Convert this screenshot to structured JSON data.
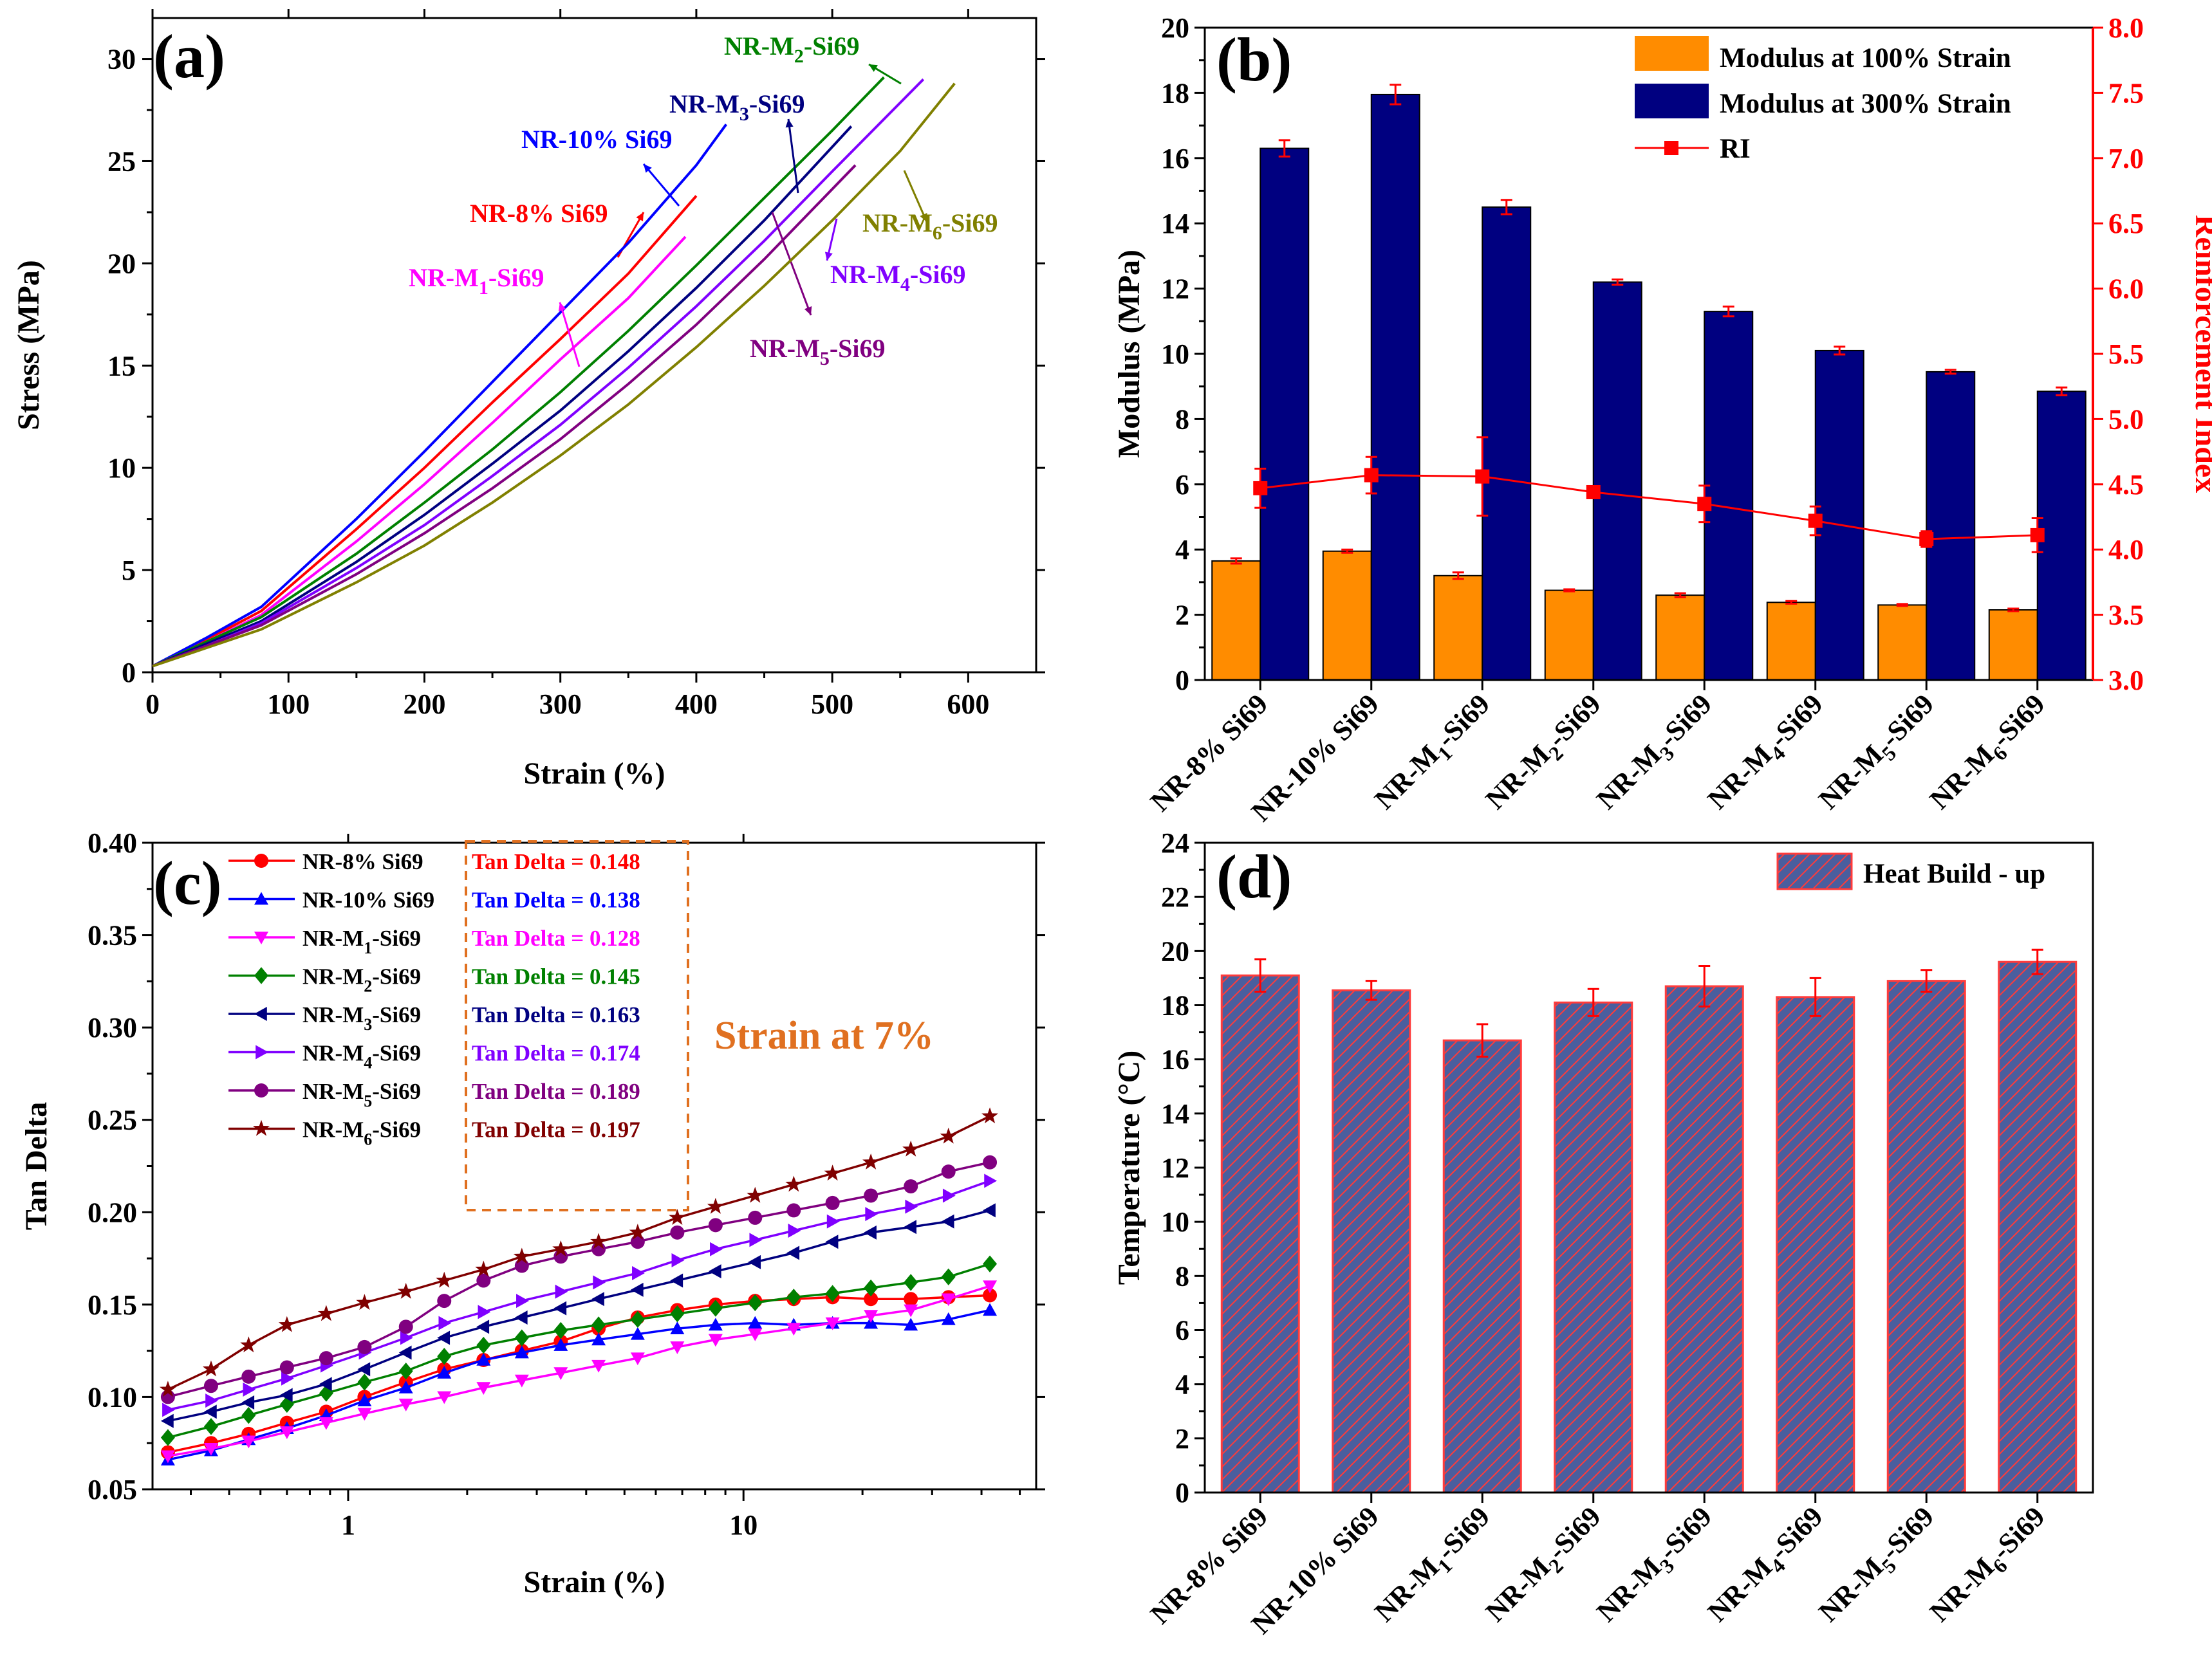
{
  "colors": {
    "navy": "#000080",
    "orange": "#ff8c00",
    "red": "#ff0000",
    "blue": "#0000ff",
    "magenta": "#ff00ff",
    "green": "#008000",
    "darknavy": "#000080",
    "violet": "#8000ff",
    "purple": "#800080",
    "olive": "#808000",
    "darkred": "#800000",
    "hatch_fill": "#4a5e9e",
    "hatch_line": "#ff3b3b",
    "callout": "#e07020"
  },
  "chart_data": [
    {
      "id": "a",
      "panel_label": "(a)",
      "type": "line",
      "xlabel": "Strain (%)",
      "ylabel": "Stress (MPa)",
      "xlim": [
        0,
        650
      ],
      "ylim": [
        0,
        32
      ],
      "xticks": [
        "0",
        "100",
        "200",
        "300",
        "400",
        "500",
        "600"
      ],
      "yticks": [
        "0",
        "5",
        "10",
        "15",
        "20",
        "25",
        "30"
      ],
      "series": [
        {
          "name": "NR-8% Si69",
          "label_parts": [
            "NR-8% Si69"
          ],
          "color": "#ff0000",
          "points": [
            [
              0,
              0.3
            ],
            [
              40,
              1.6
            ],
            [
              80,
              3.0
            ],
            [
              150,
              7.0
            ],
            [
              200,
              10.0
            ],
            [
              250,
              13.2
            ],
            [
              300,
              16.3
            ],
            [
              350,
              19.5
            ],
            [
              400,
              23.3
            ]
          ]
        },
        {
          "name": "NR-10% Si69",
          "label_parts": [
            "NR-10% Si69"
          ],
          "color": "#0000ff",
          "points": [
            [
              0,
              0.3
            ],
            [
              40,
              1.7
            ],
            [
              80,
              3.2
            ],
            [
              150,
              7.5
            ],
            [
              200,
              10.8
            ],
            [
              250,
              14.2
            ],
            [
              300,
              17.6
            ],
            [
              350,
              21.0
            ],
            [
              400,
              24.8
            ],
            [
              422,
              26.8
            ]
          ]
        },
        {
          "name": "NR-M1-Si69",
          "label_parts": [
            "NR-M",
            "1",
            "-Si69"
          ],
          "color": "#ff00ff",
          "points": [
            [
              0,
              0.3
            ],
            [
              40,
              1.5
            ],
            [
              80,
              2.8
            ],
            [
              150,
              6.4
            ],
            [
              200,
              9.2
            ],
            [
              250,
              12.2
            ],
            [
              300,
              15.3
            ],
            [
              350,
              18.3
            ],
            [
              392,
              21.3
            ]
          ]
        },
        {
          "name": "NR-M2-Si69",
          "label_parts": [
            "NR-M",
            "2",
            "-Si69"
          ],
          "color": "#008000",
          "points": [
            [
              0,
              0.3
            ],
            [
              40,
              1.5
            ],
            [
              80,
              2.7
            ],
            [
              150,
              5.8
            ],
            [
              200,
              8.3
            ],
            [
              250,
              10.9
            ],
            [
              300,
              13.7
            ],
            [
              350,
              16.7
            ],
            [
              400,
              19.9
            ],
            [
              450,
              23.2
            ],
            [
              500,
              26.5
            ],
            [
              538,
              29.1
            ]
          ]
        },
        {
          "name": "NR-M3-Si69",
          "label_parts": [
            "NR-M",
            "3",
            "-Si69"
          ],
          "color": "#000080",
          "points": [
            [
              0,
              0.3
            ],
            [
              40,
              1.4
            ],
            [
              80,
              2.5
            ],
            [
              150,
              5.4
            ],
            [
              200,
              7.7
            ],
            [
              250,
              10.2
            ],
            [
              300,
              12.8
            ],
            [
              350,
              15.7
            ],
            [
              400,
              18.8
            ],
            [
              450,
              22.1
            ],
            [
              514,
              26.7
            ]
          ]
        },
        {
          "name": "NR-M4-Si69",
          "label_parts": [
            "NR-M",
            "4",
            "-Si69"
          ],
          "color": "#8000ff",
          "points": [
            [
              0,
              0.3
            ],
            [
              40,
              1.3
            ],
            [
              80,
              2.4
            ],
            [
              150,
              5.1
            ],
            [
              200,
              7.2
            ],
            [
              250,
              9.6
            ],
            [
              300,
              12.1
            ],
            [
              350,
              14.9
            ],
            [
              400,
              17.9
            ],
            [
              450,
              21.1
            ],
            [
              500,
              24.5
            ],
            [
              567,
              29.0
            ]
          ]
        },
        {
          "name": "NR-M5-Si69",
          "label_parts": [
            "NR-M",
            "5",
            "-Si69"
          ],
          "color": "#800080",
          "points": [
            [
              0,
              0.3
            ],
            [
              40,
              1.3
            ],
            [
              80,
              2.3
            ],
            [
              150,
              4.8
            ],
            [
              200,
              6.8
            ],
            [
              250,
              9.0
            ],
            [
              300,
              11.4
            ],
            [
              350,
              14.1
            ],
            [
              400,
              17.0
            ],
            [
              450,
              20.2
            ],
            [
              517,
              24.8
            ]
          ]
        },
        {
          "name": "NR-M6-Si69",
          "label_parts": [
            "NR-M",
            "6",
            "-Si69"
          ],
          "color": "#808000",
          "points": [
            [
              0,
              0.3
            ],
            [
              40,
              1.2
            ],
            [
              80,
              2.1
            ],
            [
              150,
              4.4
            ],
            [
              200,
              6.2
            ],
            [
              250,
              8.3
            ],
            [
              300,
              10.6
            ],
            [
              350,
              13.1
            ],
            [
              400,
              15.9
            ],
            [
              450,
              18.9
            ],
            [
              500,
              22.1
            ],
            [
              550,
              25.5
            ],
            [
              590,
              28.8
            ]
          ]
        }
      ]
    },
    {
      "id": "b",
      "panel_label": "(b)",
      "type": "bar",
      "ylabel": "Modulus (MPa)",
      "y2label": "Reinforcement Index",
      "ylim": [
        0,
        20
      ],
      "y2lim": [
        3.0,
        8.0
      ],
      "yticks": [
        "0",
        "2",
        "4",
        "6",
        "8",
        "10",
        "12",
        "14",
        "16",
        "18",
        "20"
      ],
      "y2ticks": [
        "3.0",
        "3.5",
        "4.0",
        "4.5",
        "5.0",
        "5.5",
        "6.0",
        "6.5",
        "7.0",
        "7.5",
        "8.0"
      ],
      "categories": [
        {
          "label": "NR-8% Si69",
          "parts": [
            "NR-8% Si69"
          ]
        },
        {
          "label": "NR-10% Si69",
          "parts": [
            "NR-10% Si69"
          ]
        },
        {
          "label": "NR-M1-Si69",
          "parts": [
            "NR-M",
            "1",
            "-Si69"
          ]
        },
        {
          "label": "NR-M2-Si69",
          "parts": [
            "NR-M",
            "2",
            "-Si69"
          ]
        },
        {
          "label": "NR-M3-Si69",
          "parts": [
            "NR-M",
            "3",
            "-Si69"
          ]
        },
        {
          "label": "NR-M4-Si69",
          "parts": [
            "NR-M",
            "4",
            "-Si69"
          ]
        },
        {
          "label": "NR-M5-Si69",
          "parts": [
            "NR-M",
            "5",
            "-Si69"
          ]
        },
        {
          "label": "NR-M6-Si69",
          "parts": [
            "NR-M",
            "6",
            "-Si69"
          ]
        }
      ],
      "series": [
        {
          "name": "Modulus at 100% Strain",
          "color": "#ff8c00",
          "values": [
            3.65,
            3.95,
            3.2,
            2.75,
            2.6,
            2.38,
            2.3,
            2.15
          ],
          "errors": [
            0.08,
            0.05,
            0.1,
            0.03,
            0.06,
            0.04,
            0.03,
            0.04
          ]
        },
        {
          "name": "Modulus at 300% Strain",
          "color": "#000080",
          "values": [
            16.3,
            17.95,
            14.5,
            12.2,
            11.3,
            10.1,
            9.45,
            8.85
          ],
          "errors": [
            0.25,
            0.3,
            0.22,
            0.08,
            0.15,
            0.12,
            0.06,
            0.12
          ]
        },
        {
          "name": "RI",
          "axis": "right",
          "color": "#ff0000",
          "values": [
            4.47,
            4.57,
            4.56,
            4.44,
            4.35,
            4.22,
            4.08,
            4.11
          ],
          "errors": [
            0.15,
            0.14,
            0.3,
            0.03,
            0.14,
            0.11,
            0.06,
            0.13
          ]
        }
      ]
    },
    {
      "id": "c",
      "panel_label": "(c)",
      "type": "line",
      "xscale": "log",
      "xlabel": "Strain (%)",
      "ylabel": "Tan Delta",
      "xlim": [
        0.32,
        55
      ],
      "ylim": [
        0.05,
        0.4
      ],
      "xticks": [
        "1",
        "10"
      ],
      "yticks": [
        "0.05",
        "0.10",
        "0.15",
        "0.20",
        "0.25",
        "0.30",
        "0.35",
        "0.40"
      ],
      "x": [
        0.35,
        0.45,
        0.56,
        0.7,
        0.88,
        1.1,
        1.4,
        1.75,
        2.2,
        2.75,
        3.45,
        4.3,
        5.4,
        6.8,
        8.5,
        10.7,
        13.4,
        16.8,
        21,
        26.5,
        33,
        42
      ],
      "annotation": "Strain at 7%",
      "series": [
        {
          "name": "NR-8% Si69",
          "parts": [
            "NR-8% Si69"
          ],
          "tan_delta": "Tan Delta = 0.148",
          "color": "#ff0000",
          "marker": "circle",
          "values": [
            0.07,
            0.075,
            0.08,
            0.086,
            0.092,
            0.1,
            0.108,
            0.115,
            0.12,
            0.125,
            0.13,
            0.137,
            0.143,
            0.147,
            0.15,
            0.152,
            0.153,
            0.154,
            0.153,
            0.153,
            0.154,
            0.155
          ]
        },
        {
          "name": "NR-10% Si69",
          "parts": [
            "NR-10% Si69"
          ],
          "tan_delta": "Tan Delta = 0.138",
          "color": "#0000ff",
          "marker": "triangle-up",
          "values": [
            0.066,
            0.071,
            0.077,
            0.083,
            0.09,
            0.098,
            0.105,
            0.113,
            0.12,
            0.124,
            0.128,
            0.131,
            0.134,
            0.137,
            0.139,
            0.14,
            0.139,
            0.14,
            0.14,
            0.139,
            0.142,
            0.147
          ]
        },
        {
          "name": "NR-M1-Si69",
          "parts": [
            "NR-M",
            "1",
            "-Si69"
          ],
          "tan_delta": "Tan Delta = 0.128",
          "color": "#ff00ff",
          "marker": "triangle-down",
          "values": [
            0.068,
            0.072,
            0.076,
            0.081,
            0.086,
            0.091,
            0.096,
            0.1,
            0.105,
            0.109,
            0.113,
            0.117,
            0.121,
            0.127,
            0.131,
            0.134,
            0.137,
            0.14,
            0.144,
            0.147,
            0.153,
            0.16
          ]
        },
        {
          "name": "NR-M2-Si69",
          "parts": [
            "NR-M",
            "2",
            "-Si69"
          ],
          "tan_delta": "Tan Delta = 0.145",
          "color": "#008000",
          "marker": "diamond",
          "values": [
            0.078,
            0.084,
            0.09,
            0.096,
            0.102,
            0.108,
            0.114,
            0.122,
            0.128,
            0.132,
            0.136,
            0.139,
            0.142,
            0.145,
            0.148,
            0.151,
            0.154,
            0.156,
            0.159,
            0.162,
            0.165,
            0.172
          ]
        },
        {
          "name": "NR-M3-Si69",
          "parts": [
            "NR-M",
            "3",
            "-Si69"
          ],
          "tan_delta": "Tan Delta = 0.163",
          "color": "#000080",
          "marker": "triangle-left",
          "values": [
            0.087,
            0.092,
            0.097,
            0.101,
            0.107,
            0.115,
            0.124,
            0.132,
            0.138,
            0.143,
            0.148,
            0.153,
            0.158,
            0.163,
            0.168,
            0.173,
            0.178,
            0.184,
            0.189,
            0.192,
            0.195,
            0.201
          ]
        },
        {
          "name": "NR-M4-Si69",
          "parts": [
            "NR-M",
            "4",
            "-Si69"
          ],
          "tan_delta": "Tan Delta = 0.174",
          "color": "#8000ff",
          "marker": "triangle-right",
          "values": [
            0.093,
            0.098,
            0.104,
            0.11,
            0.117,
            0.124,
            0.132,
            0.14,
            0.146,
            0.152,
            0.157,
            0.162,
            0.167,
            0.174,
            0.18,
            0.185,
            0.19,
            0.195,
            0.199,
            0.203,
            0.209,
            0.217
          ]
        },
        {
          "name": "NR-M5-Si69",
          "parts": [
            "NR-M",
            "5",
            "-Si69"
          ],
          "tan_delta": "Tan Delta = 0.189",
          "color": "#800080",
          "marker": "circle",
          "values": [
            0.1,
            0.106,
            0.111,
            0.116,
            0.121,
            0.127,
            0.138,
            0.152,
            0.163,
            0.171,
            0.176,
            0.18,
            0.184,
            0.189,
            0.193,
            0.197,
            0.201,
            0.205,
            0.209,
            0.214,
            0.222,
            0.227
          ]
        },
        {
          "name": "NR-M6-Si69",
          "parts": [
            "NR-M",
            "6",
            "-Si69"
          ],
          "tan_delta": "Tan Delta = 0.197",
          "color": "#800000",
          "marker": "star",
          "values": [
            0.104,
            0.115,
            0.128,
            0.139,
            0.145,
            0.151,
            0.157,
            0.163,
            0.169,
            0.176,
            0.18,
            0.184,
            0.189,
            0.197,
            0.203,
            0.209,
            0.215,
            0.221,
            0.227,
            0.234,
            0.241,
            0.252
          ]
        }
      ]
    },
    {
      "id": "d",
      "panel_label": "(d)",
      "type": "bar",
      "ylabel": "Temperature (°C)",
      "ylim": [
        0,
        24
      ],
      "yticks": [
        "0",
        "2",
        "4",
        "6",
        "8",
        "10",
        "12",
        "14",
        "16",
        "18",
        "20",
        "22",
        "24"
      ],
      "categories": [
        {
          "label": "NR-8% Si69",
          "parts": [
            "NR-8% Si69"
          ]
        },
        {
          "label": "NR-10% Si69",
          "parts": [
            "NR-10% Si69"
          ]
        },
        {
          "label": "NR-M1-Si69",
          "parts": [
            "NR-M",
            "1",
            "-Si69"
          ]
        },
        {
          "label": "NR-M2-Si69",
          "parts": [
            "NR-M",
            "2",
            "-Si69"
          ]
        },
        {
          "label": "NR-M3-Si69",
          "parts": [
            "NR-M",
            "3",
            "-Si69"
          ]
        },
        {
          "label": "NR-M4-Si69",
          "parts": [
            "NR-M",
            "4",
            "-Si69"
          ]
        },
        {
          "label": "NR-M5-Si69",
          "parts": [
            "NR-M",
            "5",
            "-Si69"
          ]
        },
        {
          "label": "NR-M6-Si69",
          "parts": [
            "NR-M",
            "6",
            "-Si69"
          ]
        }
      ],
      "series": [
        {
          "name": "Heat Build - up",
          "values": [
            19.1,
            18.55,
            16.7,
            18.1,
            18.7,
            18.3,
            18.9,
            19.6
          ],
          "errors": [
            0.6,
            0.35,
            0.6,
            0.5,
            0.75,
            0.7,
            0.4,
            0.45
          ]
        }
      ]
    }
  ]
}
